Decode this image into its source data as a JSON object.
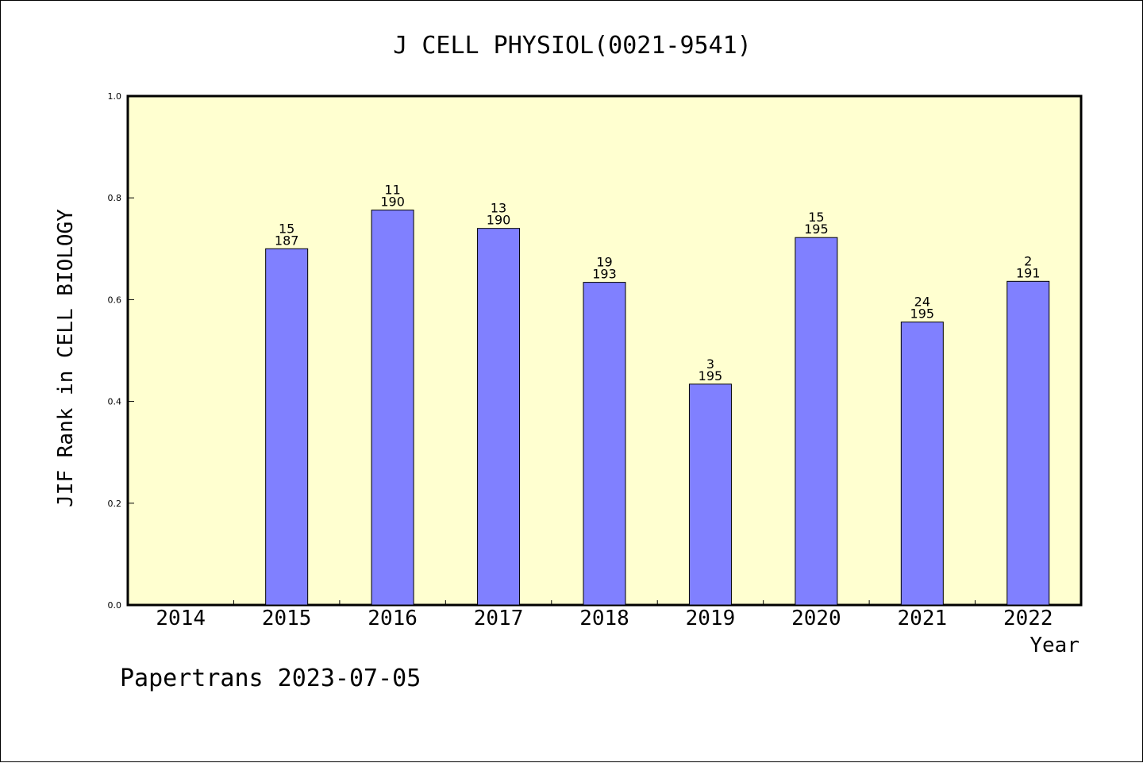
{
  "chart_data": {
    "type": "bar",
    "title": "J CELL PHYSIOL(0021-9541)",
    "xlabel": "Year",
    "ylabel": "JIF Rank in CELL BIOLOGY",
    "categories": [
      "2014",
      "2015",
      "2016",
      "2017",
      "2018",
      "2019",
      "2020",
      "2021",
      "2022"
    ],
    "values": [
      null,
      0.7,
      0.776,
      0.74,
      0.634,
      0.434,
      0.722,
      0.556,
      0.636
    ],
    "rank": [
      "",
      "15",
      "11",
      "13",
      "19",
      "3",
      "15",
      "24",
      "2"
    ],
    "total": [
      "",
      "187",
      "190",
      "190",
      "193",
      "195",
      "195",
      "195",
      "191"
    ],
    "ylim": [
      0,
      1.0
    ],
    "yticks": [
      "0.0",
      "0.2",
      "0.4",
      "0.6",
      "0.8",
      "1.0"
    ],
    "grid": false,
    "bar_color": "#8080ff",
    "plot_background": "#ffffd0"
  },
  "footer": "Papertrans 2023-07-05"
}
